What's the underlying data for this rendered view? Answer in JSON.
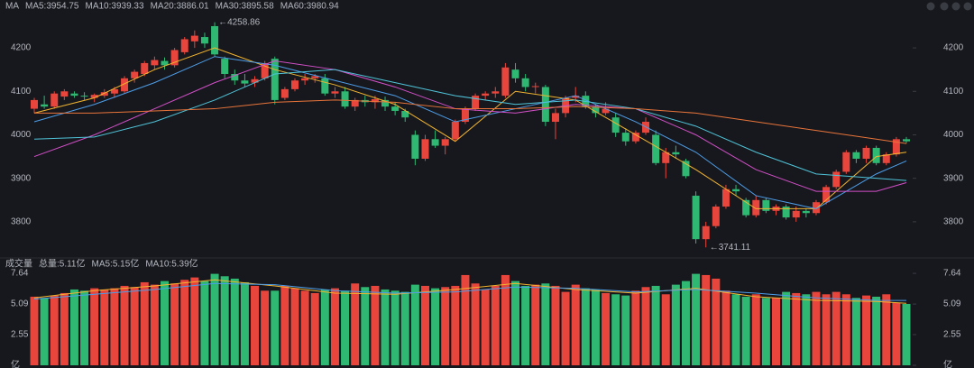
{
  "chart_data": [
    {
      "type": "candlestick",
      "title": "MA",
      "up_color": "#e8453c",
      "down_color": "#2eb872",
      "ylim": [
        3723,
        4279
      ],
      "yticks": [
        3800,
        3900,
        4000,
        4100,
        4200
      ],
      "candles": [
        [
          4060,
          4085,
          4050,
          4080
        ],
        [
          4070,
          4090,
          4060,
          4065
        ],
        [
          4065,
          4100,
          4060,
          4095
        ],
        [
          4088,
          4105,
          4080,
          4100
        ],
        [
          4095,
          4100,
          4085,
          4090
        ],
        [
          4090,
          4098,
          4080,
          4088
        ],
        [
          4085,
          4095,
          4075,
          4092
        ],
        [
          4090,
          4105,
          4085,
          4098
        ],
        [
          4095,
          4110,
          4085,
          4105
        ],
        [
          4100,
          4135,
          4095,
          4130
        ],
        [
          4130,
          4150,
          4120,
          4145
        ],
        [
          4140,
          4170,
          4135,
          4165
        ],
        [
          4160,
          4180,
          4150,
          4172
        ],
        [
          4170,
          4178,
          4150,
          4160
        ],
        [
          4160,
          4200,
          4155,
          4195
        ],
        [
          4190,
          4225,
          4185,
          4220
        ],
        [
          4215,
          4240,
          4200,
          4228
        ],
        [
          4225,
          4235,
          4200,
          4210
        ],
        [
          4250,
          4258.86,
          4180,
          4185
        ],
        [
          4175,
          4180,
          4130,
          4140
        ],
        [
          4140,
          4150,
          4115,
          4125
        ],
        [
          4125,
          4140,
          4110,
          4118
        ],
        [
          4120,
          4135,
          4110,
          4128
        ],
        [
          4130,
          4170,
          4125,
          4165
        ],
        [
          4175,
          4180,
          4070,
          4080
        ],
        [
          4085,
          4110,
          4080,
          4105
        ],
        [
          4105,
          4130,
          4100,
          4125
        ],
        [
          4125,
          4140,
          4115,
          4130
        ],
        [
          4130,
          4140,
          4120,
          4135
        ],
        [
          4130,
          4140,
          4090,
          4095
        ],
        [
          4095,
          4110,
          4085,
          4100
        ],
        [
          4100,
          4110,
          4060,
          4065
        ],
        [
          4065,
          4085,
          4055,
          4080
        ],
        [
          4080,
          4090,
          4065,
          4075
        ],
        [
          4075,
          4090,
          4060,
          4082
        ],
        [
          4080,
          4088,
          4055,
          4065
        ],
        [
          4065,
          4075,
          4045,
          4055
        ],
        [
          4055,
          4060,
          4030,
          4040
        ],
        [
          4000,
          4010,
          3930,
          3945
        ],
        [
          3945,
          4000,
          3940,
          3990
        ],
        [
          3990,
          4010,
          3970,
          3975
        ],
        [
          3975,
          3995,
          3955,
          3990
        ],
        [
          3990,
          4035,
          3985,
          4030
        ],
        [
          4030,
          4065,
          4025,
          4060
        ],
        [
          4060,
          4095,
          4055,
          4090
        ],
        [
          4090,
          4100,
          4080,
          4095
        ],
        [
          4095,
          4110,
          4085,
          4100
        ],
        [
          4090,
          4165,
          4085,
          4155
        ],
        [
          4150,
          4165,
          4120,
          4130
        ],
        [
          4130,
          4140,
          4100,
          4110
        ],
        [
          4110,
          4120,
          4095,
          4112
        ],
        [
          4110,
          4115,
          4020,
          4030
        ],
        [
          4030,
          4060,
          3990,
          4050
        ],
        [
          4050,
          4090,
          4040,
          4085
        ],
        [
          4085,
          4110,
          4075,
          4090
        ],
        [
          4090,
          4100,
          4060,
          4065
        ],
        [
          4065,
          4070,
          4040,
          4050
        ],
        [
          4050,
          4075,
          4045,
          4060
        ],
        [
          4040,
          4050,
          3995,
          4005
        ],
        [
          4005,
          4015,
          3975,
          3985
        ],
        [
          3985,
          4010,
          3980,
          4005
        ],
        [
          4005,
          4040,
          4000,
          4030
        ],
        [
          4000,
          4010,
          3930,
          3935
        ],
        [
          3935,
          3970,
          3900,
          3960
        ],
        [
          3960,
          3975,
          3945,
          3955
        ],
        [
          3940,
          3945,
          3900,
          3905
        ],
        [
          3860,
          3870,
          3750,
          3760
        ],
        [
          3760,
          3800,
          3741.11,
          3790
        ],
        [
          3790,
          3840,
          3785,
          3835
        ],
        [
          3835,
          3885,
          3830,
          3875
        ],
        [
          3875,
          3885,
          3860,
          3870
        ],
        [
          3850,
          3855,
          3810,
          3815
        ],
        [
          3815,
          3860,
          3810,
          3850
        ],
        [
          3850,
          3855,
          3820,
          3825
        ],
        [
          3825,
          3840,
          3815,
          3835
        ],
        [
          3835,
          3840,
          3805,
          3810
        ],
        [
          3810,
          3835,
          3800,
          3825
        ],
        [
          3825,
          3830,
          3810,
          3820
        ],
        [
          3820,
          3850,
          3815,
          3845
        ],
        [
          3845,
          3885,
          3840,
          3880
        ],
        [
          3880,
          3920,
          3875,
          3915
        ],
        [
          3915,
          3965,
          3910,
          3960
        ],
        [
          3960,
          3965,
          3935,
          3945
        ],
        [
          3945,
          3975,
          3935,
          3970
        ],
        [
          3970,
          3975,
          3930,
          3935
        ],
        [
          3935,
          3960,
          3930,
          3955
        ],
        [
          3955,
          3995,
          3950,
          3990
        ],
        [
          3990,
          3995,
          3980,
          3985
        ]
      ],
      "ma_x": [
        0,
        6,
        12,
        18,
        24,
        30,
        36,
        42,
        48,
        54,
        60,
        66,
        72,
        78,
        84,
        87
      ],
      "series": [
        {
          "name": "MA5:3954.75",
          "color": "#f2b430",
          "values": [
            4050,
            4085,
            4150,
            4200,
            4150,
            4115,
            4070,
            3985,
            4100,
            4080,
            4000,
            3920,
            3830,
            3830,
            3950,
            3960
          ]
        },
        {
          "name": "MA10:3939.33",
          "color": "#4d9de8",
          "values": [
            4030,
            4070,
            4120,
            4180,
            4160,
            4125,
            4090,
            4030,
            4060,
            4090,
            4030,
            3960,
            3860,
            3830,
            3910,
            3940
          ]
        },
        {
          "name": "MA20:3886.01",
          "color": "#d24fc8",
          "values": [
            3950,
            4000,
            4060,
            4120,
            4170,
            4150,
            4110,
            4060,
            4050,
            4070,
            4060,
            4000,
            3920,
            3870,
            3870,
            3890
          ]
        },
        {
          "name": "MA30:3895.58",
          "color": "#4fc3d8",
          "values": [
            3990,
            3995,
            4030,
            4080,
            4140,
            4150,
            4120,
            4090,
            4070,
            4080,
            4060,
            4020,
            3960,
            3910,
            3900,
            3895
          ]
        },
        {
          "name": "MA60:3980.94",
          "color": "#e8743a",
          "values": [
            4050,
            4050,
            4055,
            4060,
            4075,
            4080,
            4075,
            4060,
            4060,
            4065,
            4060,
            4050,
            4030,
            4010,
            3990,
            3980
          ]
        }
      ],
      "annotations": [
        {
          "label": "←4258.86",
          "value": 4258.86
        },
        {
          "label": "←3741.11",
          "value": 3741.11
        }
      ]
    },
    {
      "type": "volume",
      "title": "成交量",
      "total_label": "总量:5.11亿",
      "total_color": "#e8453c",
      "ylim": [
        0,
        8.02
      ],
      "yticks": [
        {
          "value": 0,
          "label": "亿"
        },
        2.55,
        5.09,
        7.64
      ],
      "values": [
        5.7,
        5.6,
        5.8,
        6.0,
        6.3,
        6.2,
        6.4,
        6.3,
        6.4,
        6.6,
        6.5,
        6.9,
        6.7,
        7.0,
        6.8,
        7.1,
        7.3,
        7.0,
        7.6,
        7.4,
        7.2,
        6.9,
        6.6,
        6.2,
        6.2,
        6.6,
        6.4,
        6.2,
        6.0,
        6.3,
        6.4,
        6.2,
        6.8,
        6.5,
        6.6,
        6.3,
        6.2,
        6.1,
        6.7,
        6.6,
        6.4,
        6.5,
        6.6,
        7.5,
        6.8,
        6.3,
        6.6,
        7.5,
        7.0,
        6.6,
        6.7,
        6.8,
        6.6,
        6.1,
        6.7,
        6.4,
        6.3,
        6.0,
        5.9,
        5.8,
        6.2,
        6.5,
        6.6,
        5.9,
        6.7,
        7.0,
        7.6,
        7.5,
        7.2,
        6.2,
        5.9,
        5.7,
        5.9,
        5.6,
        5.6,
        6.1,
        6.0,
        5.9,
        6.1,
        5.9,
        6.1,
        5.9,
        5.6,
        5.8,
        5.7,
        5.9,
        5.2,
        5.1
      ],
      "series": [
        {
          "name": "MA5:5.15亿",
          "color": "#f2b430",
          "values": [
            5.6,
            6.2,
            6.6,
            7.1,
            6.6,
            6.0,
            5.9,
            6.3,
            6.8,
            6.3,
            6.0,
            6.4,
            5.7,
            5.4,
            5.3,
            5.15
          ]
        },
        {
          "name": "MA10:5.39亿",
          "color": "#4d9de8",
          "values": [
            5.5,
            5.9,
            6.3,
            6.8,
            6.7,
            6.2,
            6.0,
            6.1,
            6.5,
            6.4,
            6.1,
            6.3,
            6.0,
            5.6,
            5.4,
            5.39
          ]
        }
      ]
    }
  ]
}
